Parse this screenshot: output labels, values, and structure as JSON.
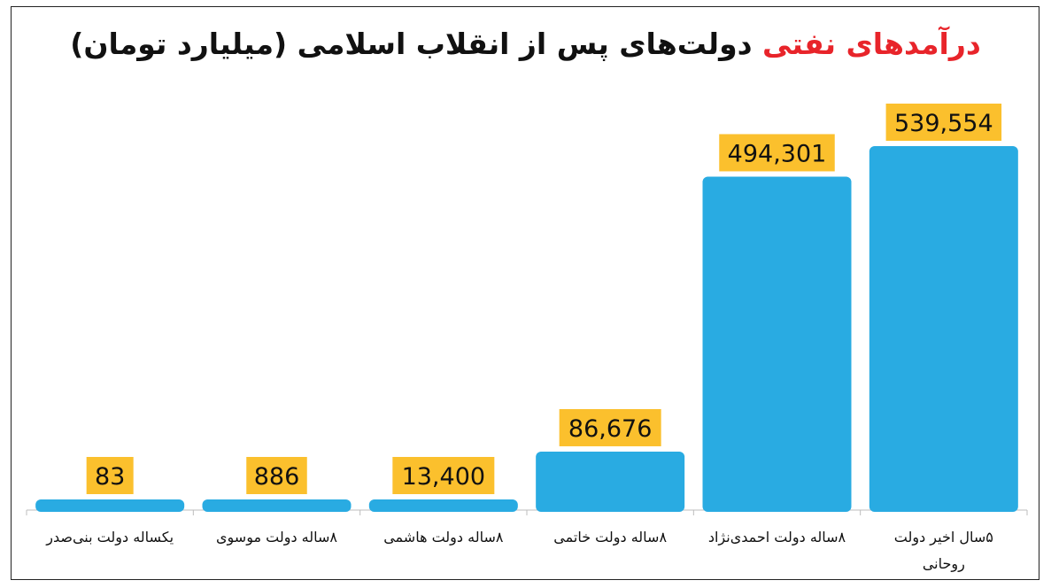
{
  "title": {
    "part1": "درآمدهای نفتی",
    "part2": " دولت‌های پس از انقلاب اسلامی (میلیارد تومان)"
  },
  "colors": {
    "bar": "#29abe2",
    "label_bg": "#fbc02d",
    "title_accent": "#e8242a",
    "axis": "#bdbdbd"
  },
  "chart_data": {
    "type": "bar",
    "categories": [
      "یکساله دولت بنی‌صدر",
      "۸ساله دولت موسوی",
      "۸ساله دولت هاشمی",
      "۸ساله دولت خاتمی",
      "۸ساله دولت احمدی‌نژاد",
      "۵سال اخیر دولت روحانی"
    ],
    "category_lines": [
      [
        "یکساله دولت بنی‌صدر"
      ],
      [
        "۸ساله دولت موسوی"
      ],
      [
        "۸ساله دولت هاشمی"
      ],
      [
        "۸ساله دولت خاتمی"
      ],
      [
        "۸ساله دولت احمدی‌نژاد"
      ],
      [
        "۵سال اخیر دولت",
        "روحانی"
      ]
    ],
    "values": [
      83,
      886,
      13400,
      86676,
      494301,
      539554
    ],
    "value_labels": [
      "83",
      "886",
      "13,400",
      "86,676",
      "494,301",
      "539,554"
    ],
    "ylim": [
      0,
      539554
    ],
    "grid": false,
    "legend": "none"
  }
}
